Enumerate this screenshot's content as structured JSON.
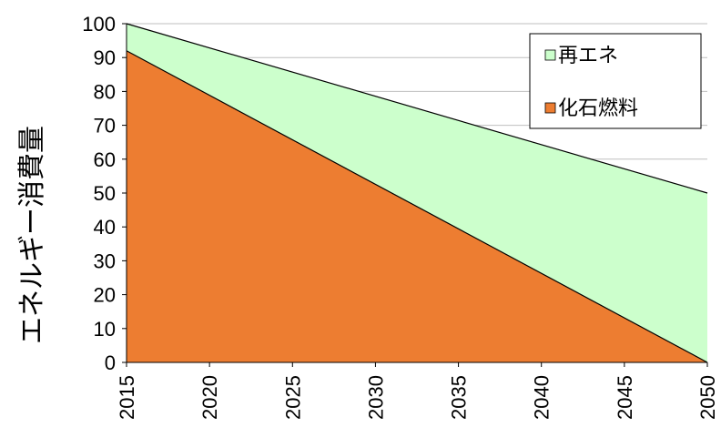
{
  "chart_data": {
    "type": "area",
    "stacked": true,
    "x": [
      2015,
      2050
    ],
    "series": [
      {
        "name": "化石燃料",
        "values": [
          92,
          0
        ],
        "color": "#ED7D31"
      },
      {
        "name": "再エネ",
        "values": [
          8,
          50
        ],
        "color": "#CCFFCC"
      }
    ],
    "total": [
      100,
      50
    ],
    "xticks": [
      "2015",
      "2020",
      "2025",
      "2030",
      "2035",
      "2040",
      "2045",
      "2050"
    ],
    "yticks": [
      "0",
      "10",
      "20",
      "30",
      "40",
      "50",
      "60",
      "70",
      "80",
      "90",
      "100"
    ],
    "xlim": [
      2015,
      2050
    ],
    "ylim": [
      0,
      100
    ],
    "xlabel": "",
    "ylabel": "エネルギー消費量",
    "legend": {
      "position": "top-right",
      "entries": [
        "再エネ",
        "化石燃料"
      ]
    },
    "grid": {
      "horizontal": true,
      "vertical": false,
      "color": "#bfbfbf"
    },
    "outline_color": "#000000"
  }
}
